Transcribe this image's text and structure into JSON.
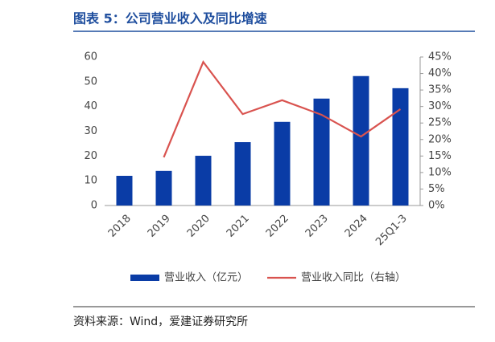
{
  "header": {
    "title": "图表 5：公司营业收入及同比增速"
  },
  "chart_data": {
    "type": "bar-line",
    "categories": [
      "2018",
      "2019",
      "2020",
      "2021",
      "2022",
      "2023",
      "2024",
      "25Q1-3"
    ],
    "series": [
      {
        "name": "营业收入（亿元）",
        "type": "bar",
        "color": "#0a3ca6",
        "values": [
          12.0,
          14.0,
          20.1,
          25.6,
          33.8,
          43.2,
          52.3,
          47.4
        ]
      },
      {
        "name": "营业收入同比（右轴）",
        "type": "line",
        "axis": "y2",
        "color": "#d9534f",
        "values": [
          null,
          14.6,
          43.5,
          27.7,
          31.9,
          27.5,
          20.9,
          29.2
        ]
      }
    ],
    "ylim": [
      0,
      60
    ],
    "yticks": [
      0,
      10,
      20,
      30,
      40,
      50,
      60
    ],
    "y2lim": [
      0,
      45
    ],
    "y2ticks": [
      {
        "value": 0,
        "label": "0%"
      },
      {
        "value": 5,
        "label": "5%"
      },
      {
        "value": 10,
        "label": "10%"
      },
      {
        "value": 15,
        "label": "15%"
      },
      {
        "value": 20,
        "label": "20%"
      },
      {
        "value": 25,
        "label": "25%"
      },
      {
        "value": 30,
        "label": "30%"
      },
      {
        "value": 35,
        "label": "35%"
      },
      {
        "value": 40,
        "label": "40%"
      },
      {
        "value": 45,
        "label": "45%"
      }
    ],
    "grid": false,
    "legend": "bottom"
  },
  "footer": {
    "source": "资料来源：Wind，爱建证券研究所"
  }
}
